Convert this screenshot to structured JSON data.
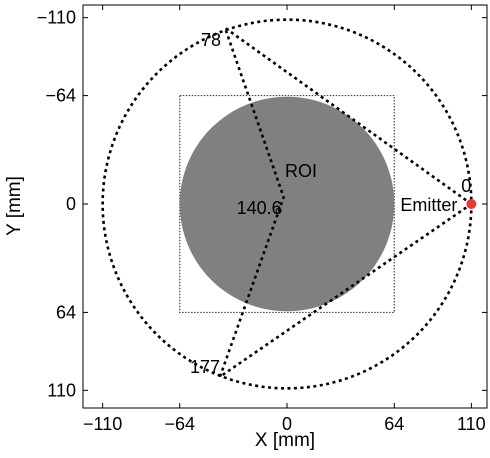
{
  "chart_data": {
    "type": "diagram",
    "xlabel": "X [mm]",
    "ylabel": "Y [mm]",
    "xlim": [
      -110,
      110
    ],
    "ylim": [
      -110,
      110
    ],
    "x_ticks": [
      -110,
      -64,
      0,
      64,
      110
    ],
    "y_ticks": [
      -110,
      -64,
      0,
      64,
      110
    ],
    "x_tick_labels": [
      "−110",
      "−64",
      "0",
      "64",
      "110"
    ],
    "y_tick_labels": [
      "−110",
      "−64",
      "0",
      "64",
      "110"
    ],
    "y_axis_inverted": true,
    "outer_circle_radius": 110,
    "roi": {
      "label": "ROI",
      "radius": 64,
      "color": "#808080"
    },
    "square_half_width": 64,
    "emitter": {
      "label": "Emitter",
      "x": 110,
      "y": 0,
      "color": "#e8392f"
    },
    "detector_angles": [
      {
        "label": "0",
        "x": 110,
        "y": 0
      },
      {
        "label": "78",
        "x": -37,
        "y": -104
      },
      {
        "label": "140.6",
        "x": -2,
        "y": -4
      },
      {
        "label": "177",
        "x": -40,
        "y": 102
      }
    ],
    "fan_polygon": [
      {
        "x": 110,
        "y": 0
      },
      {
        "x": -37,
        "y": -104
      },
      {
        "x": -2,
        "y": -4
      },
      {
        "x": -40,
        "y": 102
      }
    ],
    "center_dot": {
      "x": -5,
      "y": 4
    }
  }
}
